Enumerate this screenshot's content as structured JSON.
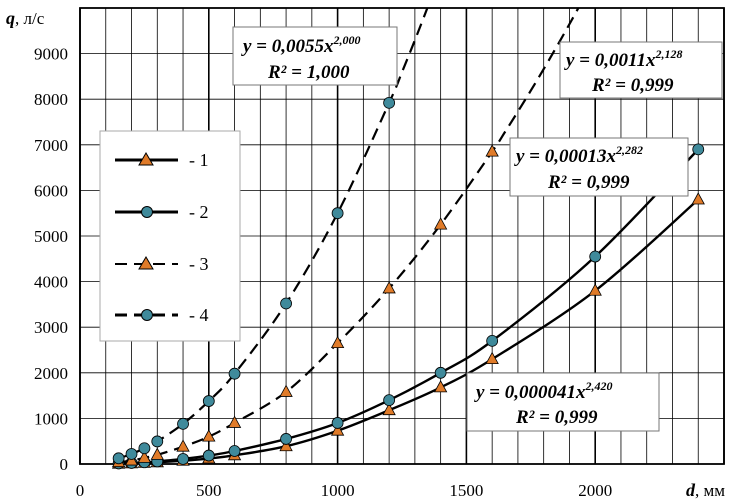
{
  "chart_data": {
    "type": "line",
    "xlabel": "d",
    "xunit": ", мм",
    "ylabel": "q",
    "yunit": ", л/с",
    "xlim": [
      0,
      2500
    ],
    "ylim": [
      0,
      10000
    ],
    "x_ticks": [
      "0",
      "500",
      "1000",
      "1500",
      "2000"
    ],
    "y_ticks": [
      "0",
      "1000",
      "2000",
      "3000",
      "4000",
      "5000",
      "6000",
      "7000",
      "8000",
      "9000"
    ],
    "grid": true,
    "legend": {
      "placement": "left-middle",
      "entries": [
        {
          "label": "- 1",
          "marker": "triangle",
          "line": "solid"
        },
        {
          "label": "- 2",
          "marker": "circle",
          "line": "solid"
        },
        {
          "label": "- 3",
          "marker": "triangle",
          "line": "dashed"
        },
        {
          "label": "- 4",
          "marker": "circle",
          "line": "dashed"
        }
      ]
    },
    "series": [
      {
        "id": "1",
        "marker": "triangle",
        "line": "solid",
        "points": [
          [
            150,
            7
          ],
          [
            200,
            15
          ],
          [
            250,
            25
          ],
          [
            300,
            37
          ],
          [
            400,
            72
          ],
          [
            500,
            120
          ],
          [
            600,
            190
          ],
          [
            800,
            390
          ],
          [
            1000,
            730
          ],
          [
            1200,
            1180
          ],
          [
            1400,
            1680
          ],
          [
            1600,
            2300
          ],
          [
            2000,
            3800
          ],
          [
            2400,
            5800
          ]
        ]
      },
      {
        "id": "2",
        "marker": "circle",
        "line": "solid",
        "points": [
          [
            150,
            12
          ],
          [
            200,
            23
          ],
          [
            250,
            38
          ],
          [
            300,
            57
          ],
          [
            400,
            110
          ],
          [
            500,
            185
          ],
          [
            600,
            285
          ],
          [
            800,
            550
          ],
          [
            1000,
            900
          ],
          [
            1200,
            1400
          ],
          [
            1400,
            2000
          ],
          [
            1600,
            2700
          ],
          [
            2000,
            4550
          ],
          [
            2400,
            6900
          ]
        ]
      },
      {
        "id": "3",
        "marker": "triangle",
        "line": "dashed",
        "points": [
          [
            150,
            40
          ],
          [
            200,
            75
          ],
          [
            250,
            135
          ],
          [
            300,
            200
          ],
          [
            400,
            380
          ],
          [
            500,
            600
          ],
          [
            600,
            900
          ],
          [
            800,
            1580
          ],
          [
            1000,
            2650
          ],
          [
            1200,
            3850
          ],
          [
            1400,
            5250
          ],
          [
            1600,
            6850
          ]
        ]
      },
      {
        "id": "4",
        "marker": "circle",
        "line": "dashed",
        "points": [
          [
            150,
            125
          ],
          [
            200,
            220
          ],
          [
            250,
            345
          ],
          [
            300,
            495
          ],
          [
            400,
            880
          ],
          [
            500,
            1380
          ],
          [
            600,
            1980
          ],
          [
            800,
            3520
          ],
          [
            1000,
            5500
          ],
          [
            1200,
            7920
          ]
        ]
      }
    ],
    "annotations": [
      {
        "eq_prefix": "y = 0,0055x",
        "eq_exp": "2,000",
        "r2": "R² = 1,000"
      },
      {
        "eq_prefix": "y = 0,0011x",
        "eq_exp": "2,128",
        "r2": "R² = 0,999"
      },
      {
        "eq_prefix": "y = 0,00013x",
        "eq_exp": "2,282",
        "r2": "R² = 0,999"
      },
      {
        "eq_prefix": "y = 0,000041x",
        "eq_exp": "2,420",
        "r2": "R² = 0,999"
      }
    ],
    "colors": {
      "marker_fill_triangle": "#e07b29",
      "marker_fill_circle": "#3f8a9b",
      "line": "#000000"
    }
  }
}
